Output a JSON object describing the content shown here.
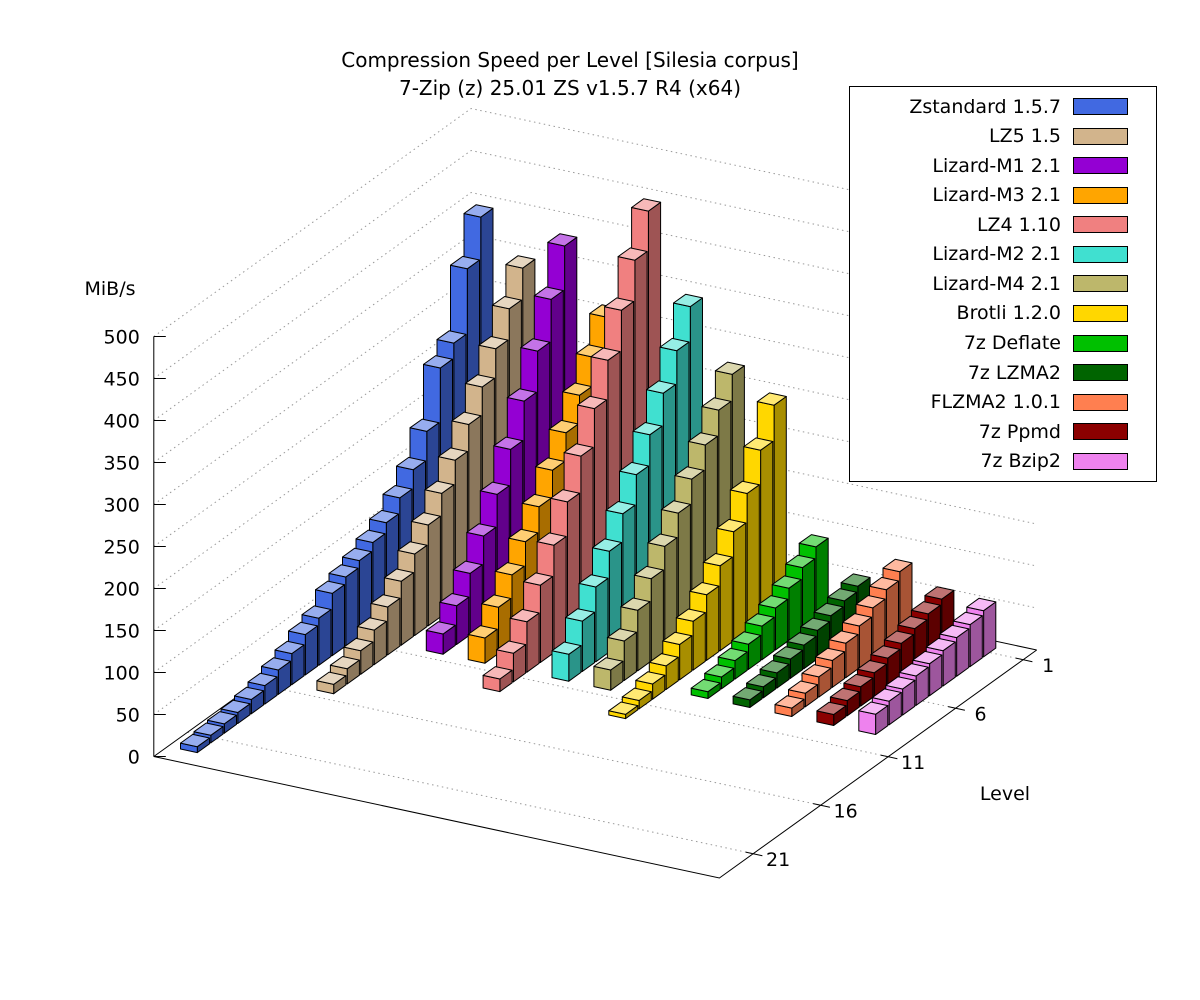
{
  "title": {
    "line1": "Compression Speed per Level [Silesia corpus]",
    "line2": "7-Zip (z) 25.01 ZS v1.5.7 R4 (x64)"
  },
  "axes": {
    "value_label": "MiB/s",
    "level_label": "Level",
    "value_ticks": [
      0,
      50,
      100,
      150,
      200,
      250,
      300,
      350,
      400,
      450,
      500
    ],
    "level_ticks": [
      1,
      6,
      11,
      16,
      21
    ],
    "value_range": [
      0,
      500
    ]
  },
  "chart_data": {
    "type": "bar",
    "style": "3d-bars",
    "title": "Compression Speed per Level [Silesia corpus]",
    "subtitle": "7-Zip (z) 25.01 ZS v1.5.7 R4 (x64)",
    "xlabel": "Level",
    "ylabel": "MiB/s",
    "value_range": [
      0,
      500
    ],
    "level_ticks": [
      1,
      6,
      11,
      16,
      21
    ],
    "grid": true,
    "legend_position": "top-right",
    "series": [
      {
        "name": "Zstandard 1.5.7",
        "color": "#4169E1",
        "values": [
          395,
          345,
          268,
          250,
          186,
          152,
          130,
          112,
          100,
          90,
          82,
          74,
          56,
          48,
          37,
          29,
          22,
          17,
          13,
          11,
          9,
          7
        ]
      },
      {
        "name": "LZ5 1.5",
        "color": "#D2B48C",
        "values": [
          345,
          308,
          272,
          238,
          205,
          174,
          146,
          120,
          97,
          76,
          57,
          41,
          28,
          18,
          11
        ]
      },
      {
        "name": "Lizard-M1 2.1",
        "color": "#9400D3",
        "values": [
          382,
          330,
          280,
          232,
          186,
          144,
          106,
          73,
          46,
          24
        ]
      },
      {
        "name": "Lizard-M3 2.1",
        "color": "#FFA500",
        "values": [
          308,
          272,
          238,
          205,
          172,
          140,
          110,
          82,
          55,
          30
        ]
      },
      {
        "name": "LZ4 1.10",
        "color": "#F08080",
        "values": [
          445,
          398,
          350,
          302,
          256,
          211,
          168,
          128,
          92,
          60,
          34,
          15
        ]
      },
      {
        "name": "Lizard-M2 2.1",
        "color": "#40E0D0",
        "values": [
          342,
          301,
          262,
          224,
          188,
          153,
          120,
          89,
          60,
          32
        ]
      },
      {
        "name": "Lizard-M4 2.1",
        "color": "#BDB76B",
        "values": [
          272,
          241,
          211,
          182,
          153,
          125,
          98,
          72,
          47,
          24
        ]
      },
      {
        "name": "Brotli 1.2.0",
        "color": "#FFD700",
        "values": [
          246,
          204,
          164,
          130,
          101,
          78,
          58,
          42,
          28,
          18,
          10,
          5
        ]
      },
      {
        "name": "7z Deflate",
        "color": "#00C000",
        "values": [
          88,
          75,
          62,
          50,
          40,
          30,
          22,
          14,
          8
        ]
      },
      {
        "name": "7z LZMA2",
        "color": "#006400",
        "values": [
          52,
          46,
          40,
          34,
          28,
          23,
          18,
          13,
          9
        ]
      },
      {
        "name": "FLZMA2 1.0.1",
        "color": "#FF7F50",
        "values": [
          80,
          70,
          60,
          50,
          41,
          32,
          24,
          16,
          10
        ]
      },
      {
        "name": "7z Ppmd",
        "color": "#8B0000",
        "values": [
          58,
          52,
          46,
          40,
          34,
          28,
          23,
          18,
          13
        ]
      },
      {
        "name": "7z Bzip2",
        "color": "#EE82EE",
        "values": [
          55,
          50,
          46,
          42,
          38,
          35,
          31,
          28,
          24
        ]
      }
    ]
  }
}
